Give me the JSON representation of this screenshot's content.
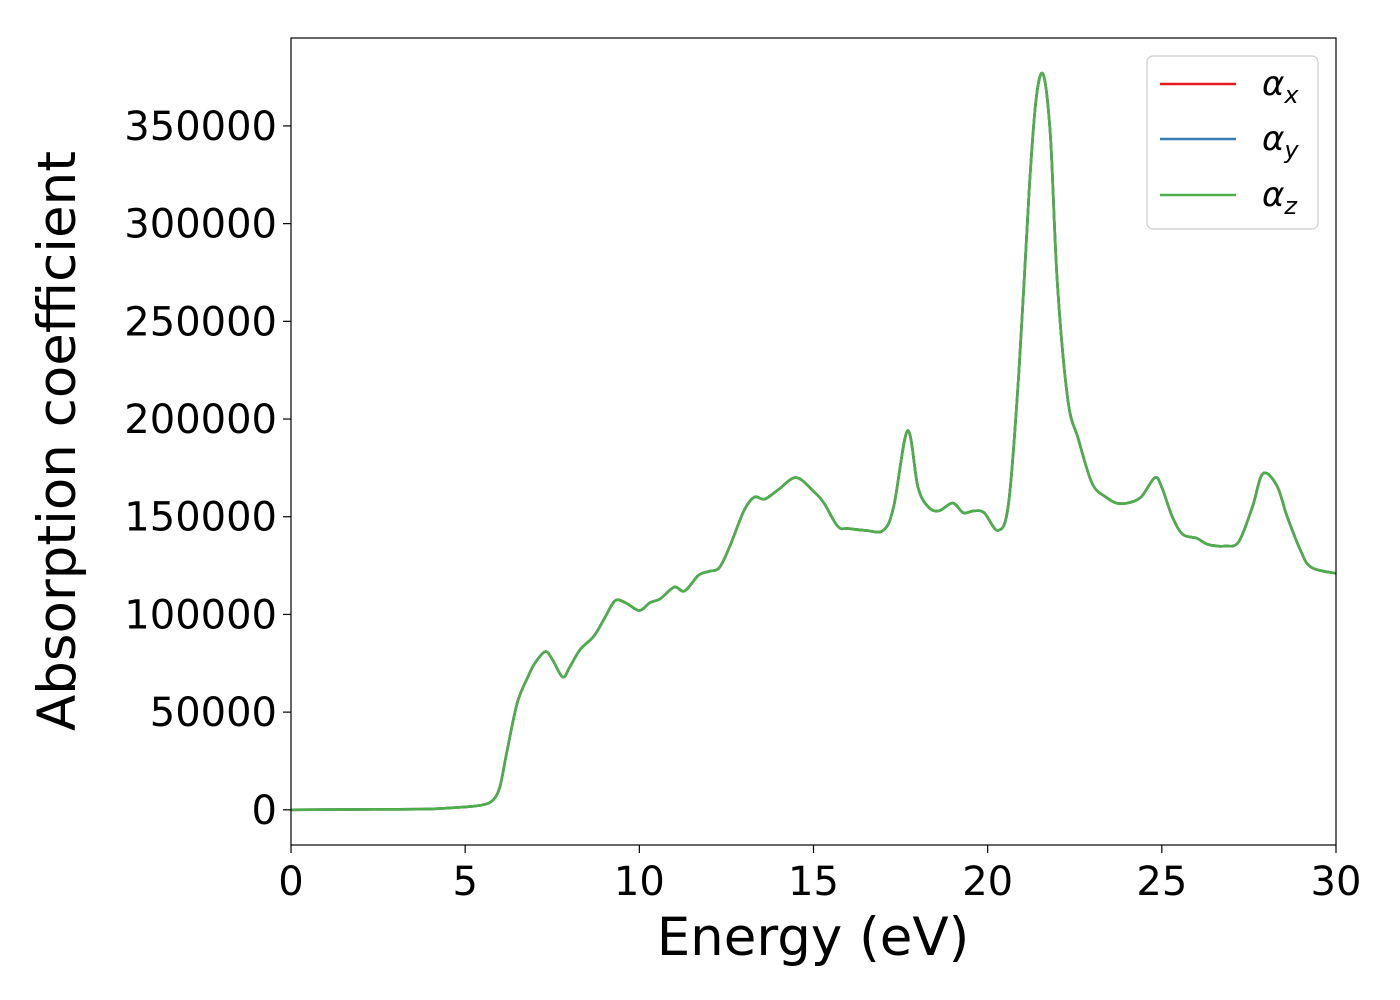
{
  "chart_data": {
    "type": "line",
    "title": "",
    "xlabel": "Energy (eV)",
    "ylabel": "Absorption coefficient",
    "xlim": [
      0,
      30
    ],
    "ylim": [
      -18000,
      395000
    ],
    "x_ticks": [
      0,
      5,
      10,
      15,
      20,
      25,
      30
    ],
    "y_ticks": [
      0,
      50000,
      100000,
      150000,
      200000,
      250000,
      300000,
      350000
    ],
    "x_tick_labels": [
      "0",
      "5",
      "10",
      "15",
      "20",
      "25",
      "30"
    ],
    "y_tick_labels": [
      "0",
      "50000",
      "100000",
      "150000",
      "200000",
      "250000",
      "300000",
      "350000"
    ],
    "grid": false,
    "legend_position": "top-right",
    "series": [
      {
        "name": "α_x",
        "symbol": "α",
        "subscript": "x",
        "color": "#e41a1c"
      },
      {
        "name": "α_y",
        "symbol": "α",
        "subscript": "y",
        "color": "#377eb8"
      },
      {
        "name": "α_z",
        "symbol": "α",
        "subscript": "z",
        "color": "#4daf4a"
      }
    ],
    "shared_curve": {
      "x": [
        0,
        2,
        4,
        5,
        5.5,
        5.8,
        6.0,
        6.2,
        6.5,
        6.8,
        7.0,
        7.3,
        7.5,
        7.8,
        8.0,
        8.3,
        8.7,
        9.0,
        9.3,
        9.6,
        10.0,
        10.3,
        10.6,
        11.0,
        11.3,
        11.7,
        12.0,
        12.3,
        12.6,
        13.0,
        13.3,
        13.6,
        14.0,
        14.5,
        15.0,
        15.3,
        15.7,
        16.0,
        16.5,
        17.0,
        17.3,
        17.7,
        18.0,
        18.3,
        18.6,
        19.0,
        19.3,
        19.6,
        19.9,
        20.3,
        20.6,
        20.9,
        21.2,
        21.4,
        21.6,
        21.8,
        22.0,
        22.3,
        22.6,
        23.0,
        23.4,
        23.7,
        24.0,
        24.4,
        24.8,
        25.0,
        25.3,
        25.6,
        26.0,
        26.3,
        26.6,
        26.8,
        27.2,
        27.6,
        27.9,
        28.3,
        28.6,
        29.0,
        29.3,
        30.0
      ],
      "y": [
        0,
        200,
        500,
        1500,
        2500,
        5000,
        12000,
        30000,
        55000,
        68000,
        75000,
        81000,
        77000,
        68000,
        73000,
        82000,
        89000,
        98000,
        107000,
        106000,
        102000,
        106000,
        108000,
        114000,
        112000,
        120000,
        122000,
        124000,
        135000,
        153000,
        160000,
        159000,
        164000,
        170000,
        163000,
        157000,
        145000,
        144000,
        143000,
        143000,
        155000,
        194000,
        165000,
        155000,
        153000,
        157000,
        152000,
        153000,
        152000,
        143000,
        157000,
        225000,
        320000,
        365000,
        376000,
        345000,
        270000,
        210000,
        190000,
        167000,
        160000,
        157000,
        157000,
        160000,
        170000,
        165000,
        150000,
        141000,
        139000,
        136000,
        135000,
        135000,
        137000,
        155000,
        172000,
        166000,
        150000,
        132000,
        124000,
        121000
      ]
    }
  }
}
